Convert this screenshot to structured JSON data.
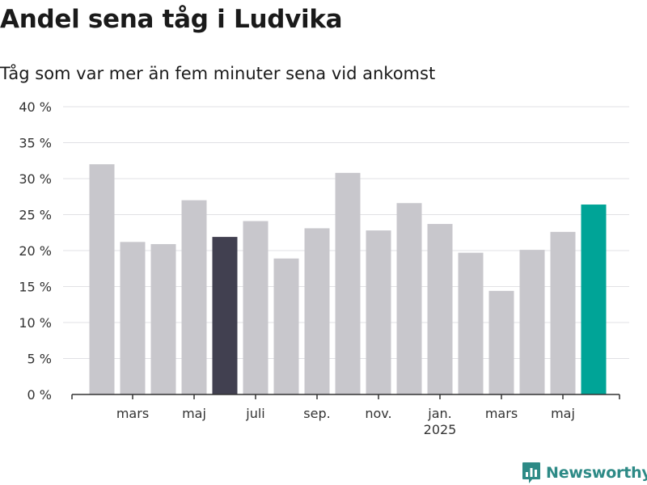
{
  "header": {
    "title": "Andel sena tåg i Ludvika",
    "subtitle": "Tåg som var mer än fem minuter sena vid ankomst"
  },
  "brand": {
    "name": "Newsworthy",
    "color": "#2d8a86"
  },
  "chart_data": {
    "type": "bar",
    "categories": [
      "2024-02",
      "2024-03",
      "2024-04",
      "2024-05",
      "2024-06",
      "2024-07",
      "2024-08",
      "2024-09",
      "2024-10",
      "2024-11",
      "2024-12",
      "2025-01",
      "2025-02",
      "2025-03",
      "2025-04",
      "2025-05",
      "2025-06"
    ],
    "values": [
      32.0,
      21.2,
      20.9,
      27.0,
      21.9,
      24.1,
      18.9,
      23.1,
      30.8,
      22.8,
      26.6,
      23.7,
      19.7,
      14.4,
      20.1,
      22.6,
      26.4
    ],
    "highlight": [
      {
        "index": 4,
        "color": "#414050"
      },
      {
        "index": 16,
        "color": "#00a497"
      }
    ],
    "default_color": "#c8c7cc",
    "ylim": [
      0,
      40
    ],
    "y_ticks": [
      {
        "value": 0,
        "label": "0 %"
      },
      {
        "value": 5,
        "label": "5 %"
      },
      {
        "value": 10,
        "label": "10 %"
      },
      {
        "value": 15,
        "label": "15 %"
      },
      {
        "value": 20,
        "label": "20 %"
      },
      {
        "value": 25,
        "label": "25 %"
      },
      {
        "value": 30,
        "label": "30 %"
      },
      {
        "value": 35,
        "label": "35 %"
      },
      {
        "value": 40,
        "label": "40 %"
      }
    ],
    "x_tick_labels": [
      {
        "index": 1,
        "label": "mars"
      },
      {
        "index": 3,
        "label": "maj"
      },
      {
        "index": 5,
        "label": "juli"
      },
      {
        "index": 7,
        "label": "sep."
      },
      {
        "index": 9,
        "label": "nov."
      },
      {
        "index": 11,
        "label": "jan.",
        "sublabel": "2025"
      },
      {
        "index": 13,
        "label": "mars"
      },
      {
        "index": 15,
        "label": "maj"
      }
    ],
    "grid": true,
    "legend": "none"
  }
}
